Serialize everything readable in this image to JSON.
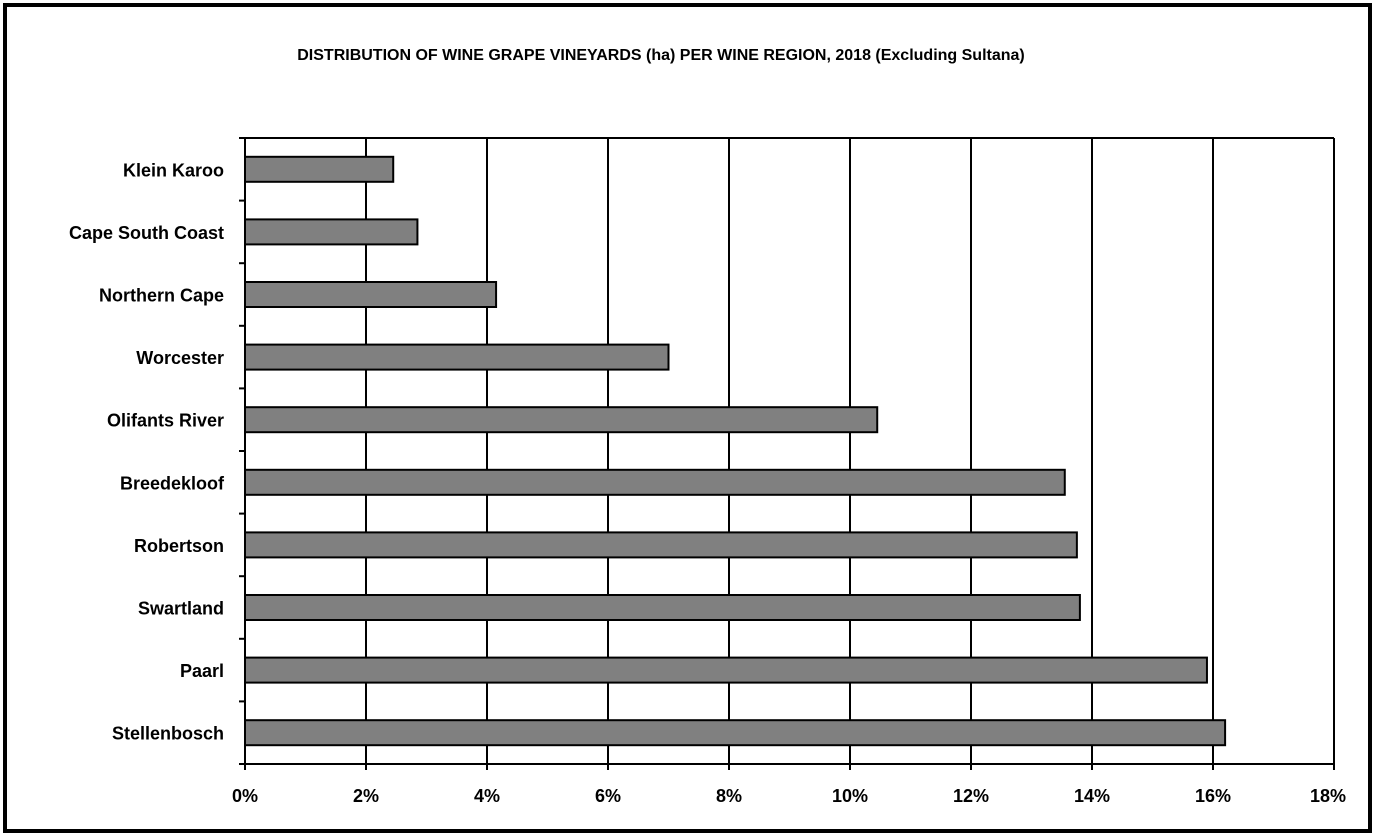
{
  "chart_data": {
    "type": "bar",
    "orientation": "horizontal",
    "title": "DISTRIBUTION OF WINE GRAPE VINEYARDS (ha) PER WINE REGION, 2018  (Excluding Sultana)",
    "xlabel": "",
    "ylabel": "",
    "categories": [
      "Klein Karoo",
      "Cape South Coast",
      "Northern Cape",
      "Worcester",
      "Olifants River",
      "Breedekloof",
      "Robertson",
      "Swartland",
      "Paarl",
      "Stellenbosch"
    ],
    "values": [
      2.45,
      2.85,
      4.15,
      7.0,
      10.45,
      13.55,
      13.75,
      13.8,
      15.9,
      16.2
    ],
    "xlim": [
      0,
      18
    ],
    "x_ticks": [
      "0%",
      "2%",
      "4%",
      "6%",
      "8%",
      "10%",
      "12%",
      "14%",
      "16%",
      "18%"
    ],
    "grid": "vertical",
    "legend": "none",
    "bar_color": "#808080",
    "bar_edge_color": "#000000"
  }
}
